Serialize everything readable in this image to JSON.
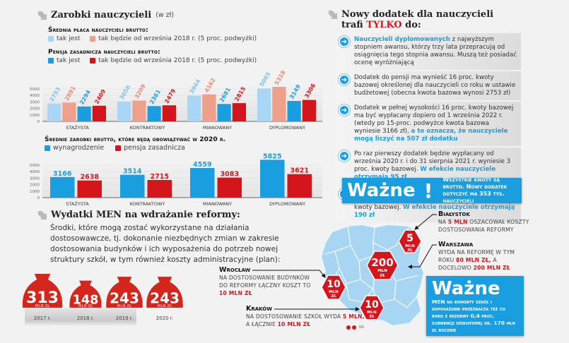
{
  "colors": {
    "light_blue": "#a9d6f5",
    "salmon": "#eea08a",
    "blue": "#1a9ee0",
    "red": "#d4161c",
    "map_fill": "#9fd0f0"
  },
  "left": {
    "title": "Zarobki nauczycieli",
    "title_unit": "(w zł)",
    "legend1_head": "Średnia płaca nauczycieli brutto:",
    "legend1_a": "tak jest",
    "legend1_b": "tak będzie od września 2018 r. (5 proc. podwyżki)",
    "legend2_head": "Pensja zasadnicza nauczycieli brutto:",
    "legend2_a": "tak jest",
    "legend2_b": "tak będzie od września 2018 r. (5 proc. podwyżki)",
    "chart2_head": "Średnie zarobki brutto, które będą obowiązywać w 2020 r.",
    "chart2_legend_a": "wynagrodzenie",
    "chart2_legend_b": "pensja zasadnicza"
  },
  "chart_data": [
    {
      "type": "bar",
      "title": "Zarobki nauczycieli (w zł)",
      "categories": [
        "STAŻYSTA",
        "KONTRAKTOWY",
        "MIANOWANY",
        "DYPLOMOWANY"
      ],
      "yticks": [
        "0",
        "1000",
        "2000",
        "3000",
        "4000",
        "5000"
      ],
      "ylim": [
        0,
        5000
      ],
      "series": [
        {
          "name": "Średnia płaca – tak jest",
          "color": "#a9d6f5",
          "label_color": "#7cc2ee",
          "values": [
            2753,
            3056,
            3964,
            5065
          ]
        },
        {
          "name": "Średnia płaca – od września 2018",
          "color": "#eea08a",
          "label_color": "#ea8a6e",
          "values": [
            2891,
            3209,
            4162,
            5318
          ]
        },
        {
          "name": "Pensja zasadnicza – tak jest",
          "color": "#1a9ee0",
          "label_color": "#1a9ee0",
          "values": [
            2294,
            2361,
            2681,
            3149
          ]
        },
        {
          "name": "Pensja zasadnicza – od września 2018",
          "color": "#d4161c",
          "label_color": "#d4161c",
          "values": [
            2409,
            2479,
            2815,
            3306
          ]
        }
      ]
    },
    {
      "type": "bar",
      "title": "Średnie zarobki brutto, które będą obowiązywać w 2020 r.",
      "categories": [
        "STAŻYSTA",
        "KONTRAKTOWY",
        "MIANOWANY",
        "DYPLOMOWANY"
      ],
      "yticks": [
        "0",
        "1000",
        "2000",
        "3000",
        "4000",
        "5000"
      ],
      "ylim": [
        0,
        5000
      ],
      "series": [
        {
          "name": "wynagrodzenie",
          "color": "#1a9ee0",
          "label_color": "#1a9ee0",
          "values": [
            3166,
            3514,
            4559,
            5825
          ]
        },
        {
          "name": "pensja zasadnicza",
          "color": "#d4161c",
          "label_color": "#d4161c",
          "values": [
            2638,
            2715,
            3083,
            3621
          ]
        }
      ]
    },
    {
      "type": "bar",
      "title": "Wydatki MEN na wdrażanie reformy",
      "categories": [
        "2017 r.",
        "2018 r.",
        "2019 r.",
        "2020 r."
      ],
      "values": [
        313,
        148,
        243,
        243
      ],
      "unit": "MLN ZŁ"
    }
  ],
  "reform": {
    "title": "Wydatki MEN na wdrażanie reformy:",
    "text": "Środki, które mogą zostać wykorzystane na działania dostosowawcze, tj. dokonanie niezbędnych zmian w zakresie dostosowania budynków i ich wyposażenia do potrzeb nowej struktury szkół, w tym również koszty administracyjne (plan):",
    "bags": [
      {
        "value": "313",
        "unit": "MLN ZŁ",
        "year": "2017 r."
      },
      {
        "value": "148",
        "unit": "MLN ZŁ",
        "year": "2018 r."
      },
      {
        "value": "243",
        "unit": "MLN ZŁ",
        "year": "2019 r."
      },
      {
        "value": "243",
        "unit": "MLN ZŁ",
        "year": "2020 r."
      }
    ]
  },
  "right": {
    "title_line1": "Nowy dodatek dla nauczycieli",
    "title_line2_pre": "trafi ",
    "title_line2_accent": "TYLKO",
    "title_line2_post": " do:",
    "bullets": [
      {
        "strong": "Nauczycieli dyplomowanych",
        "text": " z najwyższym stopniem awansu, którzy trzy lata przepracują od osiągnięcia tego stopnia awansu. Muszą też posiadać ocenę wyróżniającą",
        "tail": ""
      },
      {
        "strong": "",
        "text": "Dodatek do pensji ma wynieść 16 proc. kwoty bazowej określonej dla nauczycieli co roku w ustawie budżetowej (obecna kwota bazowa wynosi 2753 zł)",
        "tail": ""
      },
      {
        "strong": "",
        "text": "Dodatek w pełnej wysokości 16 proc. kwoty bazowej ma być wypłacany dopiero od 1 września 2022 r. (wtedy po 15-proc. podwyżce kwota bazowa wyniesie 3166 zł), ",
        "tail": "a to oznacza, że nauczyciele mogą liczyć na 507 zł dodatku"
      },
      {
        "strong": "",
        "text": "Po raz pierwszy dodatek będzie wypłacany od września 2020 r. i do 31 sierpnia 2021 r. wyniesie 3 proc. kwoty bazowej. ",
        "tail": "W efekcie nauczyciele otrzymają 95 zł"
      },
      {
        "strong": "",
        "text": "W kolejnym okresie przejściowym od 1 września 2021 r. i do 31 sierpnia 2022 r. wyniesie 6 proc. kwoty bazowej. ",
        "tail": "W efekcie nauczyciele otrzymają 190 zł"
      }
    ],
    "wazne_word": "Ważne",
    "wazne_mark": "!",
    "wazne_text": "Wszystkie kwoty są brutto. Nowy dodatek dotyczyć ma 353 tys. nauczycieli"
  },
  "map": {
    "signs": [
      {
        "value": "5",
        "unit1": "MLN",
        "unit2": "ZŁ"
      },
      {
        "value": "200",
        "unit1": "MLN",
        "unit2": "ZŁ"
      },
      {
        "value": "10",
        "unit1": "MLN",
        "unit2": "ZŁ"
      },
      {
        "value": "10",
        "unit1": "MLN",
        "unit2": "ZŁ"
      }
    ],
    "cities": {
      "bialystok": {
        "name": "Białystok",
        "pre": "na ",
        "hl": "5 mln",
        "post": " oszacował koszty dostosowania reformy"
      },
      "warszawa": {
        "name": "Warszawa",
        "pre": "wyda na reformę w tym roku ",
        "hl": "80 mln zł,",
        "mid": " a docelowo ",
        "hl2": "200 mln zł"
      },
      "wroclaw": {
        "name": "Wrocław",
        "pre": "na dostosowanie budynków do reformy łączny koszt to ",
        "hl": "10 mln zł"
      },
      "krakow": {
        "name": "Kraków",
        "pre": "na dostosowanie szkół wyda ",
        "hl": "5 mln,",
        "mid": " a łącznie ",
        "hl2": "10 mln zł"
      }
    },
    "credit": "NS"
  },
  "wazne2": {
    "word": "Ważne",
    "text": "MEN na remonty szkół i doposażenie przeznacza też co roku z rezerwy 0,4 proc. subwencji oświatowej ok. 170 mln zł rocznie"
  }
}
